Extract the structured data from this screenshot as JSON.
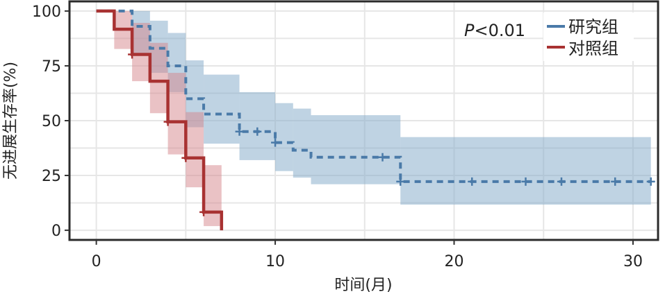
{
  "chart_data": {
    "type": "line",
    "subtype": "kaplan-meier",
    "xlabel": "时间(月)",
    "ylabel": "无进展生存率(%)",
    "xlim": [
      -1.5,
      31.4
    ],
    "ylim": [
      -4.4,
      104.4
    ],
    "xticks": [
      0,
      10,
      20,
      30
    ],
    "yticks": [
      0,
      25,
      50,
      75,
      100
    ],
    "xminor": 5,
    "yminor": 12.5,
    "grid": true,
    "annotation": {
      "prefix": "P",
      "text": "<0.01"
    },
    "legend_position": "top-right",
    "series": [
      {
        "name": "研究组",
        "color": "#4a7aa8",
        "band_color": "#7fa7c8",
        "dashed": true,
        "times": [
          0,
          2,
          3,
          4,
          5,
          6,
          8,
          10,
          11,
          12,
          17,
          31
        ],
        "survival": [
          100,
          93,
          83,
          75,
          60,
          53,
          45,
          40,
          36.5,
          33.3,
          22.2,
          22.2
        ],
        "censored": [
          [
            8,
            45
          ],
          [
            9,
            45
          ],
          [
            10,
            40
          ],
          [
            16,
            33.3
          ],
          [
            17,
            22.2
          ],
          [
            21,
            22.2
          ],
          [
            24,
            22.2
          ],
          [
            26,
            22.2
          ],
          [
            29,
            22.2
          ],
          [
            31,
            22.2
          ]
        ],
        "ci": [
          {
            "from": 2,
            "to": 3,
            "upper": 100,
            "lower": 80
          },
          {
            "from": 3,
            "to": 4,
            "upper": 95.6,
            "lower": 71.8
          },
          {
            "from": 4,
            "to": 5,
            "upper": 90,
            "lower": 63
          },
          {
            "from": 5,
            "to": 6,
            "upper": 77.5,
            "lower": 47
          },
          {
            "from": 6,
            "to": 8,
            "upper": 71,
            "lower": 39.5
          },
          {
            "from": 8,
            "to": 10,
            "upper": 63,
            "lower": 32
          },
          {
            "from": 10,
            "to": 11,
            "upper": 58,
            "lower": 27
          },
          {
            "from": 11,
            "to": 12,
            "upper": 55.5,
            "lower": 24
          },
          {
            "from": 12,
            "to": 17,
            "upper": 52.5,
            "lower": 21
          },
          {
            "from": 17,
            "to": 31,
            "upper": 42.5,
            "lower": 11.7
          }
        ]
      },
      {
        "name": "对照组",
        "color": "#a83232",
        "band_color": "#d6868c",
        "dashed": false,
        "times": [
          0,
          1,
          2,
          3,
          4,
          5,
          6,
          7,
          7
        ],
        "survival": [
          100,
          91.7,
          80.2,
          68,
          49.5,
          33,
          8.3,
          0,
          0
        ],
        "censored": [
          [
            2,
            80.2
          ],
          [
            4,
            49.5
          ],
          [
            5,
            33
          ],
          [
            6,
            8.3
          ]
        ],
        "ci": [
          {
            "from": 1,
            "to": 2,
            "upper": 100,
            "lower": 82.7
          },
          {
            "from": 2,
            "to": 3,
            "upper": 94.6,
            "lower": 68
          },
          {
            "from": 3,
            "to": 4,
            "upper": 85.5,
            "lower": 53.4
          },
          {
            "from": 4,
            "to": 5,
            "upper": 71.8,
            "lower": 34.6
          },
          {
            "from": 5,
            "to": 6,
            "upper": 53.9,
            "lower": 19.6
          },
          {
            "from": 6,
            "to": 7,
            "upper": 29.7,
            "lower": 1.9
          }
        ]
      }
    ]
  }
}
